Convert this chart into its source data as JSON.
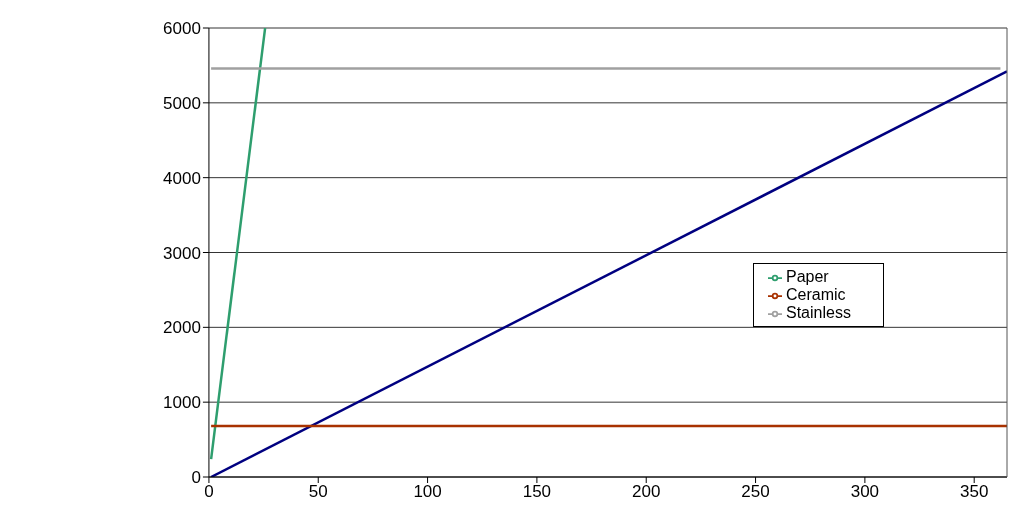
{
  "chart_data": {
    "type": "line",
    "series": [
      {
        "color": "#000080",
        "x": [
          1,
          365
        ],
        "values": [
          0,
          5420
        ]
      },
      {
        "name": "Paper",
        "color": "#2e9e6e",
        "x": [
          1,
          25.7
        ],
        "values": [
          240,
          6000
        ]
      },
      {
        "name": "Ceramic",
        "color": "#a83200",
        "x": [
          1,
          365
        ],
        "values": [
          680,
          680
        ]
      },
      {
        "name": "Stainless",
        "color": "#a0a0a0",
        "x": [
          1,
          362
        ],
        "values": [
          5460,
          5460
        ]
      }
    ],
    "xlim": [
      0,
      365
    ],
    "xticks": [
      0,
      50,
      100,
      150,
      200,
      250,
      300,
      350
    ],
    "ylim": [
      0,
      6000
    ],
    "yticks": [
      0,
      1000,
      2000,
      3000,
      4000,
      5000,
      6000
    ],
    "grid": "y",
    "legend": "right",
    "marker": "none",
    "line_style": "solid"
  }
}
